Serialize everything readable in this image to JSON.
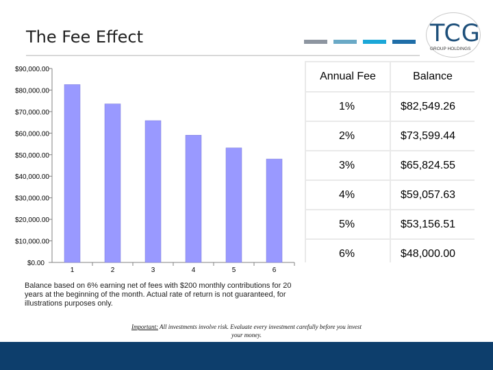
{
  "title": "The Fee Effect",
  "accent_bars": [
    "#8d95a0",
    "#6aa9c6",
    "#1ba7d8",
    "#1f6ea8"
  ],
  "logo": {
    "text": "TCG",
    "subtitle": "GROUP HOLDINGS",
    "color": "#1d4f7a"
  },
  "chart_data": {
    "type": "bar",
    "categories": [
      "1",
      "2",
      "3",
      "4",
      "5",
      "6"
    ],
    "values": [
      82549.26,
      73599.44,
      65824.55,
      59057.63,
      53156.51,
      48000.0
    ],
    "ylim": [
      0,
      90000
    ],
    "ytick_labels": [
      "$0.00",
      "$10,000.00",
      "$20,000.00",
      "$30,000.00",
      "$40,000.00",
      "$50,000.00",
      "$60,000.00",
      "$70,000.00",
      "$80,000.00",
      "$90,000.00"
    ],
    "bar_color": "#9999ff",
    "title": "",
    "xlabel": "",
    "ylabel": ""
  },
  "table": {
    "headers": [
      "Annual Fee",
      "Balance"
    ],
    "rows": [
      [
        "1%",
        "$82,549.26"
      ],
      [
        "2%",
        "$73,599.44"
      ],
      [
        "3%",
        "$65,824.55"
      ],
      [
        "4%",
        "$59,057.63"
      ],
      [
        "5%",
        "$53,156.51"
      ],
      [
        "6%",
        "$48,000.00"
      ]
    ]
  },
  "note": "Balance based on 6% earning net of fees with $200 monthly contributions for 20 years at the beginning of the month.  Actual rate of return is not guaranteed, for illustrations purposes only.",
  "important": {
    "label": "Important:",
    "text": " All investments involve risk.  Evaluate every investment carefully before you invest your money."
  },
  "footer_color": "#0d3e6c"
}
